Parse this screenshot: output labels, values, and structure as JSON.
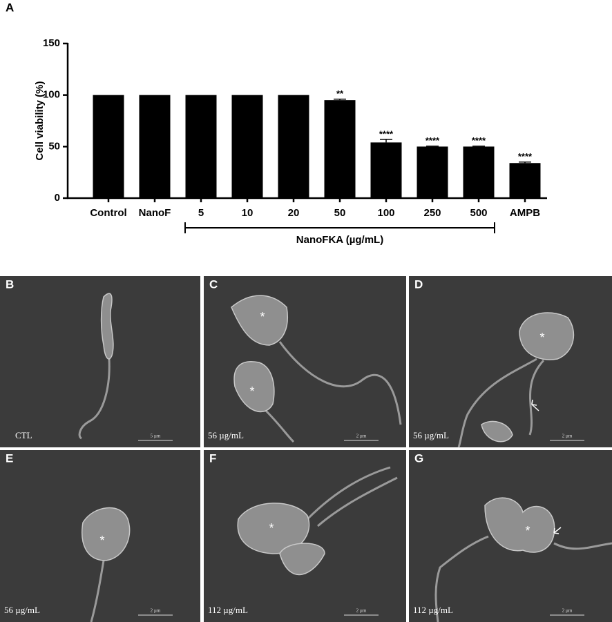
{
  "panel_label": "A",
  "chart_data": {
    "type": "bar",
    "ylabel": "Cell viability (%)",
    "categories": [
      "Control",
      "NanoF",
      "5",
      "10",
      "20",
      "50",
      "100",
      "250",
      "500",
      "AMPB"
    ],
    "values": [
      100,
      100,
      100,
      100,
      100,
      95,
      54,
      50,
      50,
      34
    ],
    "errors": [
      0,
      0,
      0,
      0,
      0,
      1,
      3,
      0.5,
      0.5,
      1
    ],
    "significance": [
      null,
      null,
      null,
      null,
      null,
      "**",
      "****",
      "****",
      "****",
      "****"
    ],
    "group_label": "NanoFKA (µg/mL)",
    "color": "#000000",
    "ylim": [
      0,
      150
    ],
    "yticks": [
      0,
      50,
      100,
      150
    ],
    "grid": false
  },
  "micrographs": [
    {
      "label": "B",
      "condition": "CTL",
      "scale": "5 µm"
    },
    {
      "label": "C",
      "condition": "56 µg/mL",
      "scale": "2 µm",
      "markers": [
        "*",
        "*"
      ]
    },
    {
      "label": "D",
      "condition": "56 µg/mL",
      "scale": "2 µm",
      "markers": [
        "*"
      ]
    },
    {
      "label": "E",
      "condition": "56 µg/mL",
      "scale": "2 µm",
      "markers": [
        "*"
      ]
    },
    {
      "label": "F",
      "condition": "112 µg/mL",
      "scale": "2 µm",
      "markers": [
        "*"
      ]
    },
    {
      "label": "G",
      "condition": "112 µg/mL",
      "scale": "2 µm",
      "markers": [
        "*"
      ]
    }
  ]
}
